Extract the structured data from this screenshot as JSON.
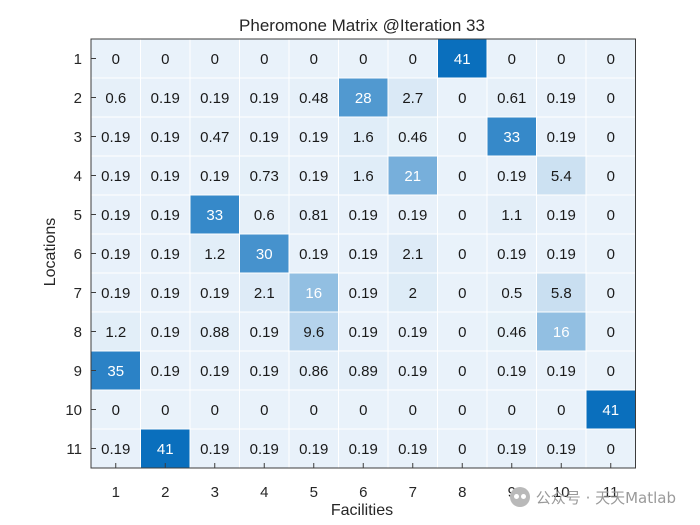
{
  "chart_data": {
    "type": "heatmap",
    "title": "Pheromone Matrix @Iteration 33",
    "xlabel": "Facilities",
    "ylabel": "Locations",
    "x_ticks": [
      "1",
      "2",
      "3",
      "4",
      "5",
      "6",
      "7",
      "8",
      "9",
      "10",
      "11"
    ],
    "y_ticks": [
      "1",
      "2",
      "3",
      "4",
      "5",
      "6",
      "7",
      "8",
      "9",
      "10",
      "11"
    ],
    "values": [
      [
        "0",
        "0",
        "0",
        "0",
        "0",
        "0",
        "0",
        "41",
        "0",
        "0",
        "0"
      ],
      [
        "0.6",
        "0.19",
        "0.19",
        "0.19",
        "0.48",
        "28",
        "2.7",
        "0",
        "0.61",
        "0.19",
        "0"
      ],
      [
        "0.19",
        "0.19",
        "0.47",
        "0.19",
        "0.19",
        "1.6",
        "0.46",
        "0",
        "33",
        "0.19",
        "0"
      ],
      [
        "0.19",
        "0.19",
        "0.19",
        "0.73",
        "0.19",
        "1.6",
        "21",
        "0",
        "0.19",
        "5.4",
        "0"
      ],
      [
        "0.19",
        "0.19",
        "33",
        "0.6",
        "0.81",
        "0.19",
        "0.19",
        "0",
        "1.1",
        "0.19",
        "0"
      ],
      [
        "0.19",
        "0.19",
        "1.2",
        "30",
        "0.19",
        "0.19",
        "2.1",
        "0",
        "0.19",
        "0.19",
        "0"
      ],
      [
        "0.19",
        "0.19",
        "0.19",
        "2.1",
        "16",
        "0.19",
        "2",
        "0",
        "0.5",
        "5.8",
        "0"
      ],
      [
        "1.2",
        "0.19",
        "0.88",
        "0.19",
        "9.6",
        "0.19",
        "0.19",
        "0",
        "0.46",
        "16",
        "0"
      ],
      [
        "35",
        "0.19",
        "0.19",
        "0.19",
        "0.86",
        "0.89",
        "0.19",
        "0",
        "0.19",
        "0.19",
        "0"
      ],
      [
        "0",
        "0",
        "0",
        "0",
        "0",
        "0",
        "0",
        "0",
        "0",
        "0",
        "41"
      ],
      [
        "0.19",
        "41",
        "0.19",
        "0.19",
        "0.19",
        "0.19",
        "0.19",
        "0",
        "0.19",
        "0.19",
        "0"
      ]
    ],
    "color_min": 0,
    "color_max": 41,
    "colors": {
      "low": "#e9f2fa",
      "high": "#0a6fbd",
      "text_dark": "#1a1a1a",
      "text_light": "#ffffff",
      "grid": "#3c3c3c"
    }
  },
  "watermark": {
    "text": "公众号 · 天天Matlab",
    "icon": "wechat-icon"
  }
}
